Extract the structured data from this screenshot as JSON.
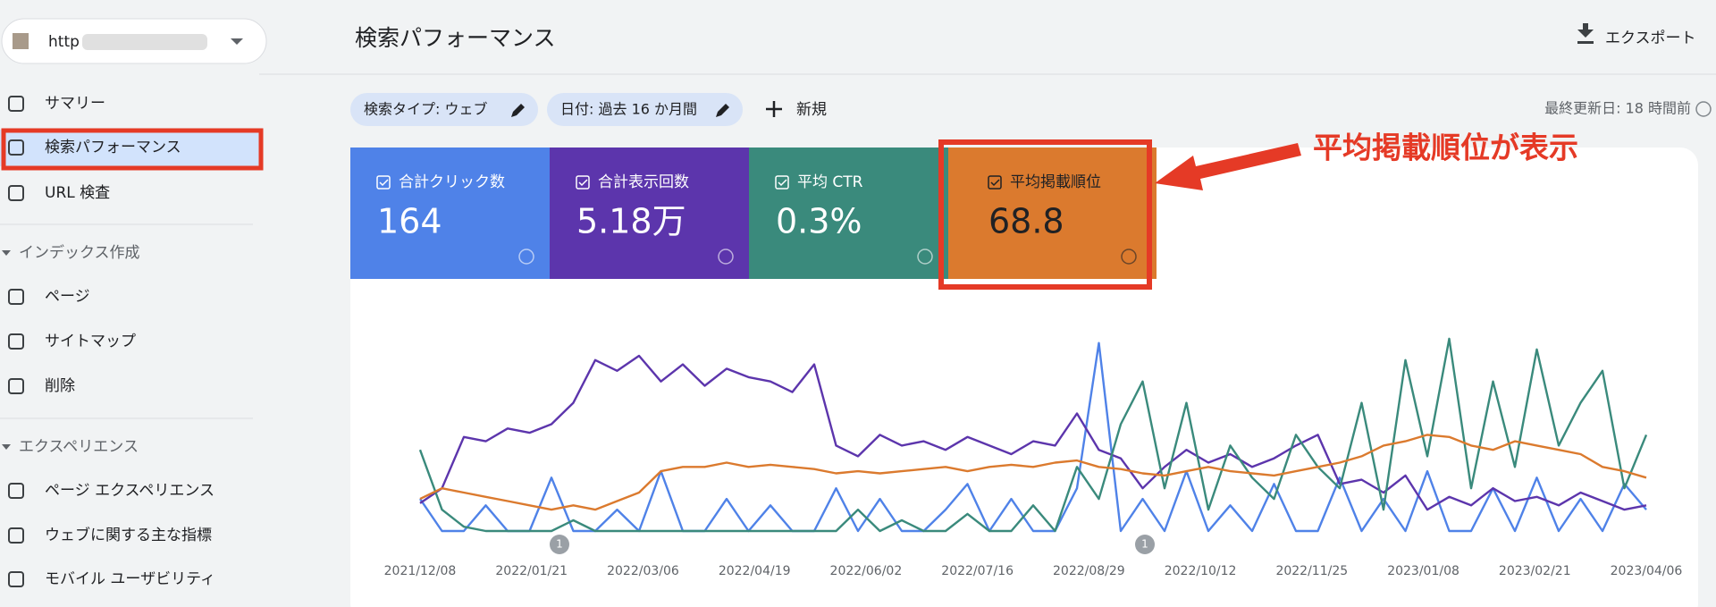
{
  "site": {
    "url": "http"
  },
  "nav": [
    {
      "label": "サマリー",
      "kind": "item"
    },
    {
      "label": "検索パフォーマンス",
      "kind": "item",
      "active": true
    },
    {
      "label": "URL 検査",
      "kind": "item"
    },
    {
      "label": "インデックス作成",
      "kind": "section"
    },
    {
      "label": "ページ",
      "kind": "item"
    },
    {
      "label": "サイトマップ",
      "kind": "item"
    },
    {
      "label": "削除",
      "kind": "item"
    },
    {
      "label": "エクスペリエンス",
      "kind": "section"
    },
    {
      "label": "ページ エクスペリエンス",
      "kind": "item"
    },
    {
      "label": "ウェブに関する主な指標",
      "kind": "item"
    },
    {
      "label": "モバイル ユーザビリティ",
      "kind": "item"
    }
  ],
  "header": {
    "title": "検索パフォーマンス",
    "export": "エクスポート",
    "updated": "最終更新日: 18 時間前"
  },
  "filters": {
    "chips": [
      "検索タイプ: ウェブ",
      "日付: 過去 16 か月間"
    ],
    "add": "新規"
  },
  "cards": [
    {
      "label": "合計クリック数",
      "value": "164",
      "color": "#4f82e8"
    },
    {
      "label": "合計表示回数",
      "value": "5.18万",
      "color": "#5c35ac"
    },
    {
      "label": "平均 CTR",
      "value": "0.3%",
      "color": "#3a8a7c"
    },
    {
      "label": "平均掲載順位",
      "value": "68.8",
      "color": "#db7a2e"
    }
  ],
  "annotation": "平均掲載順位が表示",
  "chart": {
    "type": "line",
    "ylim": [
      0,
      100
    ],
    "x_labels": [
      "2021/12/08",
      "2022/01/21",
      "2022/03/06",
      "2022/04/19",
      "2022/06/02",
      "2022/07/16",
      "2022/08/29",
      "2022/10/12",
      "2022/11/25",
      "2023/01/08",
      "2023/02/21",
      "2023/04/06"
    ],
    "markers": [
      "1",
      "1"
    ],
    "series": [
      {
        "color": "#4f82e8",
        "values": [
          15,
          0,
          0,
          12,
          0,
          0,
          25,
          0,
          0,
          10,
          0,
          28,
          0,
          0,
          15,
          0,
          12,
          0,
          0,
          20,
          0,
          15,
          0,
          0,
          10,
          22,
          0,
          15,
          0,
          0,
          20,
          88,
          0,
          15,
          0,
          28,
          0,
          12,
          0,
          22,
          0,
          0,
          25,
          0,
          15,
          0,
          28,
          0,
          0,
          20,
          0,
          25,
          0,
          15,
          0,
          22,
          10
        ]
      },
      {
        "color": "#5c35ac",
        "values": [
          13,
          20,
          44,
          42,
          48,
          46,
          50,
          60,
          80,
          75,
          82,
          70,
          78,
          68,
          76,
          72,
          70,
          65,
          78,
          40,
          35,
          45,
          40,
          42,
          38,
          44,
          40,
          36,
          42,
          40,
          55,
          38,
          34,
          20,
          30,
          38,
          32,
          36,
          30,
          34,
          40,
          45,
          22,
          24,
          18,
          26,
          10,
          16,
          12,
          20,
          14,
          16,
          12,
          18,
          14,
          10,
          12
        ]
      },
      {
        "color": "#3a8a7c",
        "values": [
          38,
          10,
          2,
          0,
          0,
          0,
          0,
          5,
          0,
          0,
          0,
          0,
          0,
          0,
          0,
          0,
          0,
          0,
          0,
          0,
          10,
          0,
          5,
          0,
          0,
          8,
          0,
          0,
          12,
          0,
          30,
          15,
          50,
          70,
          20,
          60,
          10,
          40,
          25,
          15,
          45,
          30,
          20,
          60,
          10,
          80,
          35,
          90,
          20,
          70,
          30,
          85,
          40,
          60,
          75,
          20,
          45
        ]
      },
      {
        "color": "#db7a2e",
        "values": [
          15,
          20,
          18,
          16,
          14,
          12,
          10,
          12,
          10,
          14,
          18,
          28,
          30,
          30,
          32,
          30,
          31,
          30,
          29,
          27,
          28,
          27,
          28,
          29,
          30,
          28,
          30,
          31,
          30,
          32,
          33,
          30,
          29,
          27,
          26,
          28,
          30,
          28,
          27,
          26,
          28,
          30,
          32,
          35,
          40,
          42,
          45,
          44,
          40,
          38,
          42,
          40,
          38,
          36,
          30,
          28,
          25
        ]
      }
    ]
  }
}
